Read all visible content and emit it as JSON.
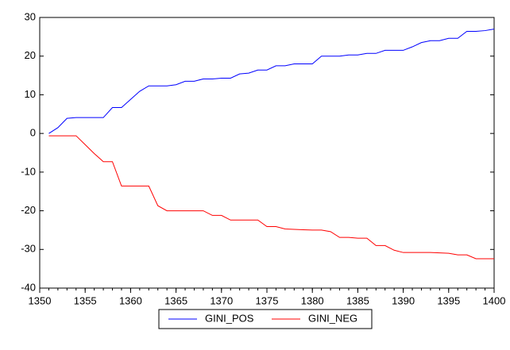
{
  "chart_data": {
    "type": "line",
    "x": [
      1351,
      1352,
      1353,
      1354,
      1355,
      1356,
      1357,
      1358,
      1359,
      1360,
      1361,
      1362,
      1363,
      1364,
      1365,
      1366,
      1367,
      1368,
      1369,
      1370,
      1371,
      1372,
      1373,
      1374,
      1375,
      1376,
      1377,
      1378,
      1379,
      1380,
      1381,
      1382,
      1383,
      1384,
      1385,
      1386,
      1387,
      1388,
      1389,
      1390,
      1391,
      1392,
      1393,
      1394,
      1395,
      1396,
      1397,
      1398,
      1399,
      1400
    ],
    "series": [
      {
        "name": "GINI_POS",
        "color": "#0000ff",
        "values": [
          0,
          1.5,
          3.9,
          4.1,
          4.1,
          4.1,
          4.1,
          6.7,
          6.7,
          8.8,
          10.9,
          12.3,
          12.3,
          12.3,
          12.6,
          13.5,
          13.5,
          14.1,
          14.1,
          14.3,
          14.3,
          15.4,
          15.6,
          16.4,
          16.4,
          17.5,
          17.5,
          18.0,
          18.0,
          18.0,
          20.0,
          20.0,
          20.0,
          20.3,
          20.3,
          20.7,
          20.7,
          21.5,
          21.5,
          21.5,
          22.4,
          23.5,
          24.0,
          24.0,
          24.6,
          24.6,
          26.4,
          26.4,
          26.6,
          27.0
        ]
      },
      {
        "name": "GINI_NEG",
        "color": "#ff0000",
        "values": [
          -0.6,
          -0.6,
          -0.6,
          -0.6,
          -2.9,
          -5.2,
          -7.3,
          -7.3,
          -13.6,
          -13.6,
          -13.6,
          -13.6,
          -18.7,
          -20.0,
          -20.0,
          -20.0,
          -20.0,
          -20.0,
          -21.2,
          -21.2,
          -22.4,
          -22.4,
          -22.4,
          -22.4,
          -24.1,
          -24.1,
          -24.7,
          -24.8,
          -24.9,
          -25.0,
          -25.0,
          -25.4,
          -26.9,
          -26.9,
          -27.1,
          -27.1,
          -29.0,
          -29.0,
          -30.2,
          -30.8,
          -30.8,
          -30.8,
          -30.8,
          -30.9,
          -31.0,
          -31.4,
          -31.4,
          -32.4,
          -32.4,
          -32.4
        ]
      }
    ],
    "xlim": [
      1350,
      1400
    ],
    "xticks": [
      1350,
      1355,
      1360,
      1365,
      1370,
      1375,
      1380,
      1385,
      1390,
      1395,
      1400
    ],
    "ylim": [
      -40,
      30
    ],
    "yticks": [
      -40,
      -30,
      -20,
      -10,
      0,
      10,
      20,
      30
    ],
    "grid": false,
    "legend": "bottom"
  }
}
